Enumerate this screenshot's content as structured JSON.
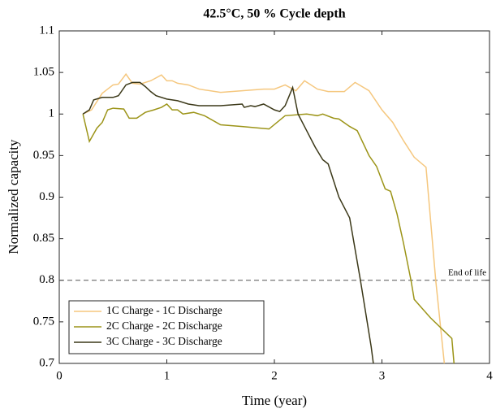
{
  "chart_data": {
    "type": "line",
    "title": "42.5°C, 50 % Cycle depth",
    "x_label": "Time (year)",
    "y_label": "Normalized capacity",
    "xlim": [
      0,
      4
    ],
    "xticks": [
      0,
      1,
      2,
      3,
      4
    ],
    "ylim": [
      0.7,
      1.1
    ],
    "yticks": [
      0.7,
      0.75,
      0.8,
      0.85,
      0.9,
      0.95,
      1,
      1.05,
      1.1
    ],
    "reference_line": {
      "value": 0.8,
      "label": "End of life"
    },
    "legend": "lower left",
    "series": [
      {
        "name": "1C Charge - 1C Discharge",
        "color": "#f5c77e",
        "x": [
          0.22,
          0.3,
          0.4,
          0.5,
          0.55,
          0.62,
          0.68,
          0.75,
          0.85,
          0.95,
          1.0,
          1.05,
          1.1,
          1.2,
          1.3,
          1.5,
          1.7,
          1.9,
          2.0,
          2.1,
          2.2,
          2.28,
          2.4,
          2.5,
          2.65,
          2.75,
          2.88,
          3.0,
          3.1,
          3.2,
          3.3,
          3.41,
          3.5,
          3.58
        ],
        "values": [
          1.0,
          1.005,
          1.025,
          1.035,
          1.036,
          1.048,
          1.037,
          1.036,
          1.04,
          1.047,
          1.04,
          1.04,
          1.037,
          1.035,
          1.03,
          1.026,
          1.028,
          1.03,
          1.03,
          1.035,
          1.028,
          1.04,
          1.03,
          1.027,
          1.027,
          1.038,
          1.028,
          1.005,
          0.99,
          0.968,
          0.948,
          0.936,
          0.8,
          0.7
        ]
      },
      {
        "name": "2C Charge - 2C Discharge",
        "color": "#9c9418",
        "x": [
          0.22,
          0.28,
          0.35,
          0.4,
          0.45,
          0.5,
          0.6,
          0.65,
          0.72,
          0.8,
          0.88,
          0.95,
          1.0,
          1.05,
          1.1,
          1.15,
          1.25,
          1.35,
          1.5,
          1.7,
          1.95,
          2.1,
          2.3,
          2.4,
          2.45,
          2.55,
          2.6,
          2.7,
          2.77,
          2.88,
          2.95,
          3.03,
          3.08,
          3.14,
          3.2,
          3.27,
          3.3,
          3.45,
          3.65,
          3.67
        ],
        "values": [
          1.0,
          0.967,
          0.983,
          0.99,
          1.005,
          1.007,
          1.006,
          0.995,
          0.995,
          1.002,
          1.005,
          1.008,
          1.012,
          1.005,
          1.005,
          1.0,
          1.002,
          0.998,
          0.987,
          0.985,
          0.982,
          0.998,
          1.0,
          0.998,
          1.0,
          0.995,
          0.994,
          0.985,
          0.98,
          0.95,
          0.937,
          0.91,
          0.907,
          0.88,
          0.845,
          0.8,
          0.777,
          0.755,
          0.73,
          0.7
        ]
      },
      {
        "name": "3C Charge - 3C Discharge",
        "color": "#3b3818",
        "x": [
          0.22,
          0.28,
          0.32,
          0.4,
          0.5,
          0.55,
          0.62,
          0.68,
          0.75,
          0.8,
          0.85,
          0.9,
          1.0,
          1.1,
          1.2,
          1.3,
          1.5,
          1.7,
          1.72,
          1.78,
          1.82,
          1.9,
          2.0,
          2.05,
          2.1,
          2.17,
          2.22,
          2.3,
          2.38,
          2.45,
          2.5,
          2.6,
          2.7,
          2.8,
          2.9,
          2.92
        ],
        "values": [
          1.0,
          1.005,
          1.017,
          1.02,
          1.02,
          1.022,
          1.035,
          1.038,
          1.038,
          1.033,
          1.027,
          1.022,
          1.018,
          1.016,
          1.012,
          1.01,
          1.01,
          1.012,
          1.008,
          1.01,
          1.009,
          1.012,
          1.005,
          1.003,
          1.01,
          1.032,
          1.0,
          0.98,
          0.96,
          0.945,
          0.94,
          0.9,
          0.875,
          0.8,
          0.72,
          0.7
        ]
      }
    ]
  }
}
